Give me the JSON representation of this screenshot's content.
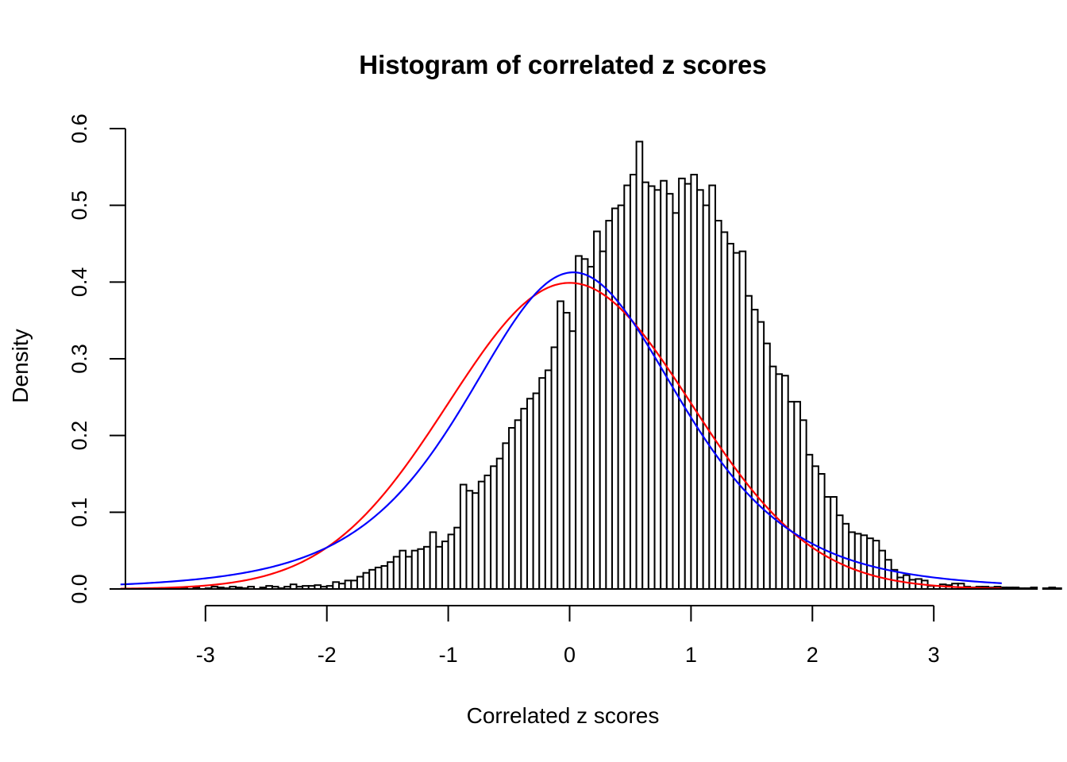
{
  "chart_data": {
    "type": "bar",
    "title": "Histogram of correlated z scores",
    "xlabel": "Correlated z scores",
    "ylabel": "Density",
    "xlim": [
      -3.7,
      3.57
    ],
    "ylim": [
      0,
      0.6
    ],
    "x_ticks": [
      -3,
      -2,
      -1,
      0,
      1,
      2,
      3
    ],
    "y_ticks": [
      0.0,
      0.1,
      0.2,
      0.3,
      0.4,
      0.5,
      0.6
    ],
    "x_tick_labels": [
      "-3",
      "-2",
      "-1",
      "0",
      "1",
      "2",
      "3"
    ],
    "y_tick_labels": [
      "0.0",
      "0.1",
      "0.2",
      "0.3",
      "0.4",
      "0.5",
      "0.6"
    ],
    "bins": {
      "start": -3.4,
      "width": 0.05,
      "densities": [
        0.001,
        0,
        0.001,
        0,
        0.001,
        0,
        0.002,
        0,
        0.001,
        0.003,
        0.002,
        0.001,
        0.003,
        0.002,
        0.001,
        0.003,
        0,
        0.002,
        0.004,
        0.003,
        0.001,
        0.003,
        0.006,
        0.003,
        0.004,
        0.004,
        0.005,
        0.003,
        0.004,
        0.009,
        0.007,
        0.011,
        0.011,
        0.016,
        0.021,
        0.025,
        0.028,
        0.03,
        0.035,
        0.042,
        0.05,
        0.042,
        0.05,
        0.052,
        0.055,
        0.074,
        0.055,
        0.062,
        0.071,
        0.08,
        0.136,
        0.128,
        0.125,
        0.14,
        0.148,
        0.16,
        0.17,
        0.19,
        0.21,
        0.22,
        0.235,
        0.248,
        0.255,
        0.275,
        0.285,
        0.315,
        0.375,
        0.36,
        0.336,
        0.434,
        0.43,
        0.42,
        0.466,
        0.44,
        0.48,
        0.496,
        0.5,
        0.526,
        0.54,
        0.583,
        0.53,
        0.525,
        0.52,
        0.532,
        0.515,
        0.49,
        0.535,
        0.528,
        0.54,
        0.52,
        0.5,
        0.526,
        0.48,
        0.465,
        0.45,
        0.438,
        0.44,
        0.382,
        0.364,
        0.348,
        0.32,
        0.29,
        0.28,
        0.278,
        0.244,
        0.244,
        0.22,
        0.175,
        0.16,
        0.15,
        0.12,
        0.12,
        0.096,
        0.085,
        0.074,
        0.072,
        0.07,
        0.066,
        0.063,
        0.05,
        0.038,
        0.025,
        0.015,
        0.018,
        0.012,
        0.013,
        0.011,
        0.004,
        0.004,
        0.006,
        0.005,
        0.007,
        0.007,
        0.003,
        0.002,
        0.003,
        0.003,
        0.002,
        0.003,
        0.002,
        0.002,
        0.002,
        0.001,
        0.001,
        0.002,
        0,
        0.001,
        0.002,
        0.001,
        0,
        0,
        0.002,
        0.001,
        0,
        0.001,
        0,
        0.001,
        0,
        0.001,
        0,
        0,
        0.001
      ]
    },
    "curves": [
      {
        "color": "#ff0000",
        "distribution": "normal",
        "mean": 0.0,
        "sd": 1.0
      },
      {
        "color": "#0000ff",
        "distribution": "t-scaled",
        "mean": 0.03,
        "sd": 0.915,
        "df": 4.5
      }
    ]
  }
}
